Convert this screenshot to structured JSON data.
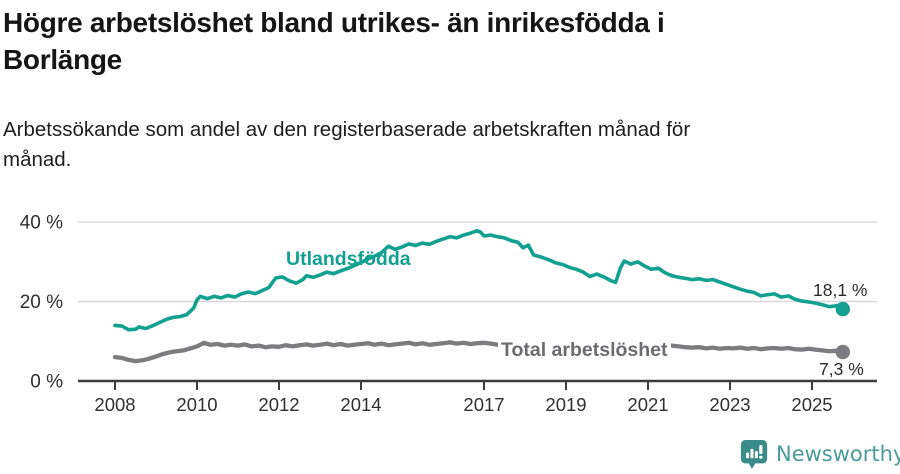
{
  "header": {
    "title_lines": [
      "Högre arbetslöshet bland utrikes- än inrikesfödda i",
      "Borlänge"
    ],
    "subtitle_lines": [
      "Arbetssökande som andel av den registerbaserade arbetskraften månad för",
      "månad."
    ]
  },
  "chart_data": {
    "type": "line",
    "title": "Högre arbetslöshet bland utrikes- än inrikesfödda i Borlänge",
    "subtitle": "Arbetssökande som andel av den registerbaserade arbetskraften månad för månad.",
    "grid": "horizontal",
    "legend": "inline-labels",
    "x_axis": {
      "ticks": [
        2008,
        2010,
        2012,
        2014,
        2017,
        2019,
        2021,
        2023,
        2025
      ],
      "tick_labels": [
        "2008",
        "2010",
        "2012",
        "2014",
        "2017",
        "2019",
        "2021",
        "2023",
        "2025"
      ],
      "range": [
        2007.1,
        2026.6
      ]
    },
    "y_axis": {
      "ticks": [
        0,
        20,
        40
      ],
      "tick_labels": [
        "0 %",
        "20 %",
        "40 %"
      ],
      "range": [
        0,
        40
      ],
      "unit": "%"
    },
    "series": [
      {
        "id": "utlandsfodda",
        "name": "Utlandsfödda",
        "color": "#12A091",
        "end_value": 18.1,
        "end_label": "18,1 %",
        "points": [
          [
            2008.0,
            14.0
          ],
          [
            2008.17,
            13.8
          ],
          [
            2008.33,
            12.9
          ],
          [
            2008.5,
            13.0
          ],
          [
            2008.58,
            13.6
          ],
          [
            2008.75,
            13.2
          ],
          [
            2008.92,
            13.9
          ],
          [
            2009.08,
            14.7
          ],
          [
            2009.25,
            15.5
          ],
          [
            2009.42,
            16.0
          ],
          [
            2009.58,
            16.2
          ],
          [
            2009.75,
            16.7
          ],
          [
            2009.92,
            18.4
          ],
          [
            2010.0,
            20.4
          ],
          [
            2010.08,
            21.3
          ],
          [
            2010.25,
            20.7
          ],
          [
            2010.42,
            21.3
          ],
          [
            2010.58,
            20.9
          ],
          [
            2010.75,
            21.5
          ],
          [
            2010.92,
            21.1
          ],
          [
            2011.08,
            21.9
          ],
          [
            2011.25,
            22.4
          ],
          [
            2011.42,
            22.0
          ],
          [
            2011.58,
            22.7
          ],
          [
            2011.75,
            23.5
          ],
          [
            2011.92,
            25.9
          ],
          [
            2012.08,
            26.2
          ],
          [
            2012.25,
            25.2
          ],
          [
            2012.42,
            24.6
          ],
          [
            2012.58,
            25.5
          ],
          [
            2012.67,
            26.5
          ],
          [
            2012.83,
            26.1
          ],
          [
            2013.0,
            26.7
          ],
          [
            2013.17,
            27.4
          ],
          [
            2013.33,
            27.0
          ],
          [
            2013.5,
            27.7
          ],
          [
            2013.67,
            28.3
          ],
          [
            2013.83,
            29.0
          ],
          [
            2014.0,
            29.8
          ],
          [
            2014.17,
            30.7
          ],
          [
            2014.33,
            31.4
          ],
          [
            2014.5,
            32.3
          ],
          [
            2014.67,
            33.9
          ],
          [
            2014.83,
            33.1
          ],
          [
            2015.0,
            33.7
          ],
          [
            2015.17,
            34.5
          ],
          [
            2015.33,
            34.1
          ],
          [
            2015.5,
            34.7
          ],
          [
            2015.67,
            34.4
          ],
          [
            2015.83,
            35.1
          ],
          [
            2016.0,
            35.7
          ],
          [
            2016.17,
            36.3
          ],
          [
            2016.33,
            36.0
          ],
          [
            2016.5,
            36.7
          ],
          [
            2016.67,
            37.2
          ],
          [
            2016.83,
            37.8
          ],
          [
            2016.92,
            37.4
          ],
          [
            2017.0,
            36.5
          ],
          [
            2017.17,
            36.7
          ],
          [
            2017.33,
            36.3
          ],
          [
            2017.5,
            36.0
          ],
          [
            2017.67,
            35.3
          ],
          [
            2017.83,
            34.9
          ],
          [
            2017.95,
            33.5
          ],
          [
            2018.08,
            34.2
          ],
          [
            2018.21,
            31.7
          ],
          [
            2018.42,
            31.1
          ],
          [
            2018.58,
            30.5
          ],
          [
            2018.75,
            29.7
          ],
          [
            2018.92,
            29.3
          ],
          [
            2019.08,
            28.6
          ],
          [
            2019.25,
            28.1
          ],
          [
            2019.42,
            27.4
          ],
          [
            2019.58,
            26.3
          ],
          [
            2019.75,
            26.9
          ],
          [
            2019.92,
            26.2
          ],
          [
            2020.08,
            25.3
          ],
          [
            2020.21,
            24.8
          ],
          [
            2020.33,
            28.5
          ],
          [
            2020.42,
            30.2
          ],
          [
            2020.58,
            29.4
          ],
          [
            2020.75,
            30.0
          ],
          [
            2020.92,
            28.9
          ],
          [
            2021.08,
            28.1
          ],
          [
            2021.25,
            28.4
          ],
          [
            2021.42,
            27.2
          ],
          [
            2021.58,
            26.5
          ],
          [
            2021.75,
            26.1
          ],
          [
            2021.92,
            25.8
          ],
          [
            2022.08,
            25.5
          ],
          [
            2022.25,
            25.7
          ],
          [
            2022.42,
            25.3
          ],
          [
            2022.58,
            25.5
          ],
          [
            2022.75,
            24.9
          ],
          [
            2022.92,
            24.3
          ],
          [
            2023.08,
            23.7
          ],
          [
            2023.25,
            23.1
          ],
          [
            2023.42,
            22.6
          ],
          [
            2023.58,
            22.3
          ],
          [
            2023.75,
            21.4
          ],
          [
            2023.92,
            21.7
          ],
          [
            2024.08,
            21.9
          ],
          [
            2024.25,
            21.1
          ],
          [
            2024.42,
            21.4
          ],
          [
            2024.58,
            20.6
          ],
          [
            2024.75,
            20.1
          ],
          [
            2024.92,
            19.9
          ],
          [
            2025.08,
            19.6
          ],
          [
            2025.25,
            19.2
          ],
          [
            2025.42,
            18.7
          ],
          [
            2025.58,
            18.9
          ],
          [
            2025.67,
            19.1
          ],
          [
            2025.75,
            18.1
          ]
        ]
      },
      {
        "id": "total",
        "name": "Total arbetslöshet",
        "color": "#7B7B80",
        "end_value": 7.3,
        "end_label": "7,3 %",
        "points": [
          [
            2008.0,
            6.0
          ],
          [
            2008.17,
            5.8
          ],
          [
            2008.33,
            5.3
          ],
          [
            2008.5,
            5.0
          ],
          [
            2008.67,
            5.2
          ],
          [
            2008.83,
            5.6
          ],
          [
            2009.0,
            6.2
          ],
          [
            2009.17,
            6.8
          ],
          [
            2009.33,
            7.2
          ],
          [
            2009.5,
            7.5
          ],
          [
            2009.67,
            7.7
          ],
          [
            2009.83,
            8.2
          ],
          [
            2010.0,
            8.7
          ],
          [
            2010.17,
            9.6
          ],
          [
            2010.33,
            9.1
          ],
          [
            2010.5,
            9.3
          ],
          [
            2010.67,
            8.9
          ],
          [
            2010.83,
            9.1
          ],
          [
            2011.0,
            8.9
          ],
          [
            2011.17,
            9.2
          ],
          [
            2011.33,
            8.7
          ],
          [
            2011.5,
            8.9
          ],
          [
            2011.67,
            8.5
          ],
          [
            2011.83,
            8.7
          ],
          [
            2012.0,
            8.6
          ],
          [
            2012.17,
            9.0
          ],
          [
            2012.33,
            8.7
          ],
          [
            2012.5,
            9.0
          ],
          [
            2012.67,
            9.2
          ],
          [
            2012.83,
            8.9
          ],
          [
            2013.0,
            9.1
          ],
          [
            2013.17,
            9.4
          ],
          [
            2013.33,
            9.0
          ],
          [
            2013.5,
            9.3
          ],
          [
            2013.67,
            8.9
          ],
          [
            2013.83,
            9.1
          ],
          [
            2014.0,
            9.3
          ],
          [
            2014.17,
            9.5
          ],
          [
            2014.33,
            9.1
          ],
          [
            2014.5,
            9.4
          ],
          [
            2014.67,
            9.0
          ],
          [
            2014.83,
            9.2
          ],
          [
            2015.0,
            9.4
          ],
          [
            2015.17,
            9.6
          ],
          [
            2015.33,
            9.2
          ],
          [
            2015.5,
            9.5
          ],
          [
            2015.67,
            9.1
          ],
          [
            2015.83,
            9.3
          ],
          [
            2016.0,
            9.5
          ],
          [
            2016.17,
            9.7
          ],
          [
            2016.33,
            9.4
          ],
          [
            2016.5,
            9.6
          ],
          [
            2016.67,
            9.3
          ],
          [
            2016.83,
            9.5
          ],
          [
            2017.0,
            9.6
          ],
          [
            2017.17,
            9.4
          ],
          [
            2017.33,
            9.1
          ],
          [
            2017.5,
            9.3
          ],
          [
            2017.67,
            9.0
          ],
          [
            2017.83,
            9.2
          ],
          [
            2018.0,
            9.0
          ],
          [
            2018.17,
            8.8
          ],
          [
            2018.33,
            8.6
          ],
          [
            2018.5,
            8.8
          ],
          [
            2018.67,
            8.5
          ],
          [
            2018.83,
            8.7
          ],
          [
            2019.0,
            8.6
          ],
          [
            2019.17,
            8.8
          ],
          [
            2019.33,
            8.5
          ],
          [
            2019.5,
            8.7
          ],
          [
            2019.67,
            8.4
          ],
          [
            2019.83,
            8.6
          ],
          [
            2020.0,
            8.5
          ],
          [
            2020.25,
            9.4
          ],
          [
            2020.42,
            10.0
          ],
          [
            2020.58,
            9.7
          ],
          [
            2020.75,
            9.9
          ],
          [
            2020.92,
            9.6
          ],
          [
            2021.08,
            9.4
          ],
          [
            2021.25,
            9.5
          ],
          [
            2021.42,
            9.1
          ],
          [
            2021.58,
            8.9
          ],
          [
            2021.75,
            8.7
          ],
          [
            2021.92,
            8.5
          ],
          [
            2022.08,
            8.4
          ],
          [
            2022.25,
            8.5
          ],
          [
            2022.42,
            8.2
          ],
          [
            2022.58,
            8.4
          ],
          [
            2022.75,
            8.1
          ],
          [
            2022.92,
            8.3
          ],
          [
            2023.08,
            8.2
          ],
          [
            2023.25,
            8.4
          ],
          [
            2023.42,
            8.1
          ],
          [
            2023.58,
            8.3
          ],
          [
            2023.75,
            8.0
          ],
          [
            2023.92,
            8.2
          ],
          [
            2024.08,
            8.3
          ],
          [
            2024.25,
            8.1
          ],
          [
            2024.42,
            8.3
          ],
          [
            2024.58,
            8.0
          ],
          [
            2024.75,
            7.9
          ],
          [
            2024.92,
            8.1
          ],
          [
            2025.08,
            7.9
          ],
          [
            2025.25,
            7.7
          ],
          [
            2025.42,
            7.5
          ],
          [
            2025.58,
            7.6
          ],
          [
            2025.75,
            7.3
          ]
        ]
      }
    ],
    "colors": {
      "accent_teal": "#12A091",
      "line_gray": "#7B7B80",
      "label_gray": "#6B6B70",
      "axis_text": "#303030",
      "gridline": "#D8D8D8"
    }
  },
  "footer": {
    "brand": "Newsworthy",
    "brand_color": "#4A9B9B",
    "logo_icon": "newsworthy-badge-bar-chart-icon"
  }
}
